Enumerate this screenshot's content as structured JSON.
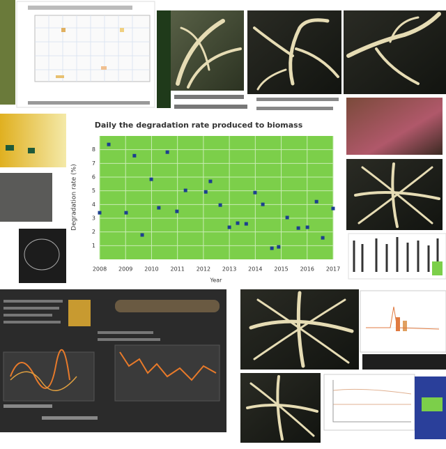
{
  "chart_data": {
    "type": "scatter",
    "title": "Daily the degradation rate produced to biomass",
    "x_label": "Year",
    "y_label": "Degradation rate (%)",
    "x": [
      2008.35,
      2009.34,
      2010.61,
      2009.99,
      2012.27,
      2011.31,
      2012.09,
      2013.99,
      2014.29,
      2016.36,
      2012.65,
      2010.28,
      2010.98,
      2009.02,
      2008.0,
      2017.0,
      2015.23,
      2013.65,
      2013.32,
      2013.0,
      2015.66,
      2016.01,
      2009.64,
      2016.6,
      2014.9,
      2014.64
    ],
    "values": [
      8.38,
      7.56,
      7.82,
      5.84,
      5.69,
      5.03,
      4.92,
      4.87,
      4.01,
      4.21,
      3.96,
      3.76,
      3.5,
      3.4,
      3.4,
      3.71,
      3.05,
      2.59,
      2.64,
      2.34,
      2.28,
      2.34,
      1.78,
      1.57,
      0.91,
      0.81
    ],
    "color": "#1c3f8f",
    "xlim": [
      2008,
      2017
    ],
    "xticks": [
      2008,
      2009,
      2010,
      2011,
      2012,
      2013,
      2014,
      2015,
      2016,
      2017
    ],
    "ylim": [
      0,
      9
    ],
    "yticks": [
      1,
      2,
      3,
      4,
      5,
      6,
      7,
      8
    ],
    "grid": true
  }
}
